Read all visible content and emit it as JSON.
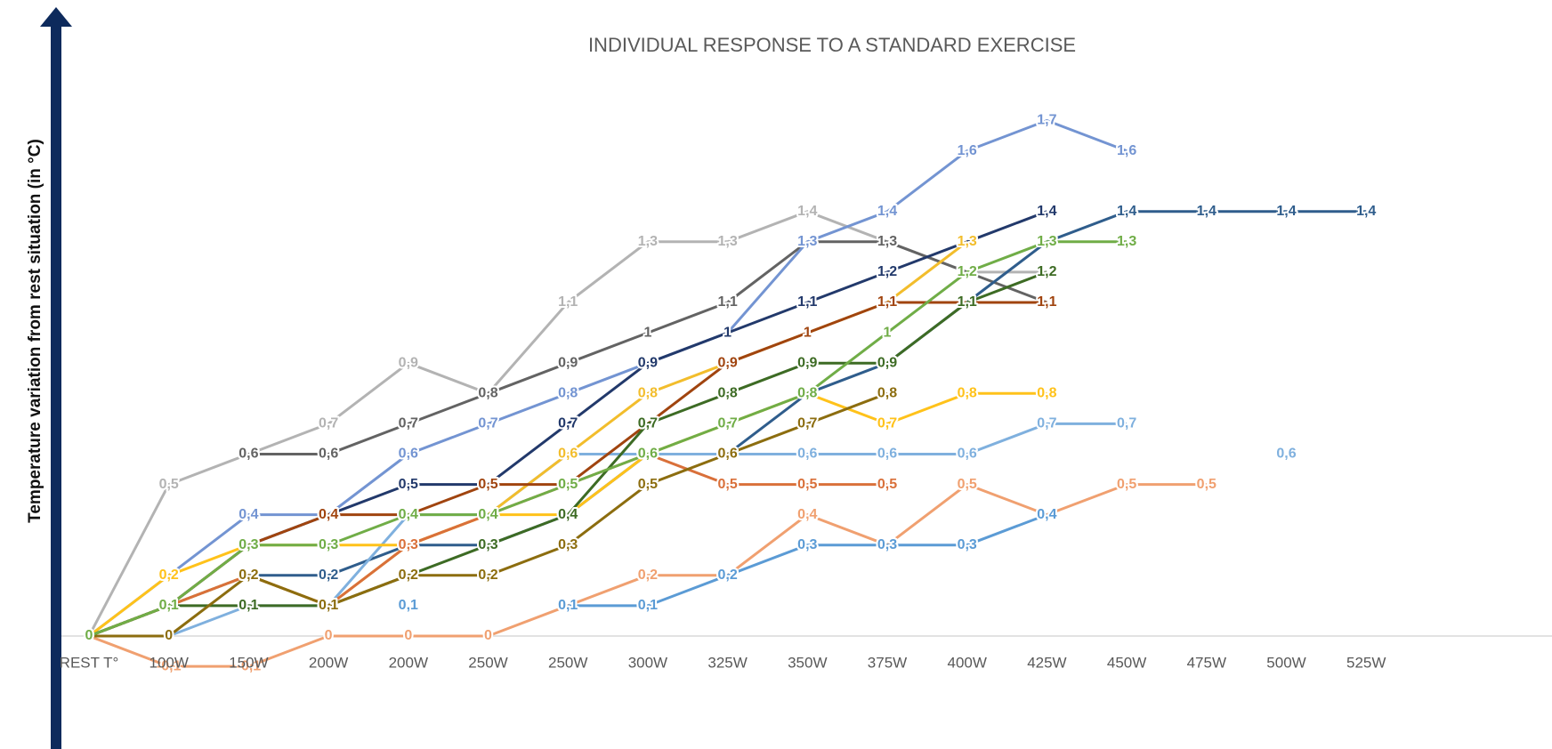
{
  "chart_data": {
    "type": "line",
    "title": "INDIVIDUAL RESPONSE TO A STANDARD EXERCISE",
    "ylabel": "Temperature variation from rest situation (in °C)",
    "categories": [
      "REST T°",
      "100W",
      "150W",
      "200W",
      "200W",
      "250W",
      "250W",
      "300W",
      "325W",
      "350W",
      "375W",
      "400W",
      "425W",
      "450W",
      "475W",
      "500W",
      "525W"
    ],
    "ylim": [
      -0.22,
      2.03
    ],
    "series": [
      {
        "color": "#b3b3b3",
        "values": [
          0,
          0.5,
          0.6,
          0.7,
          0.9,
          0.8,
          1.1,
          1.3,
          1.3,
          1.4,
          1.3,
          1.2,
          1.2,
          null,
          null,
          null,
          null
        ],
        "value_labels": [
          "0",
          "0,5",
          "0,6",
          "0,7",
          "0,9",
          "0,8",
          "1,1",
          "1,3",
          "1,3",
          "1,4",
          "1,3",
          "1,2",
          "1,2",
          null,
          null,
          null,
          null
        ]
      },
      {
        "color": "#636363",
        "values": [
          null,
          null,
          0.6,
          0.6,
          0.7,
          0.8,
          0.9,
          1,
          1.1,
          1.3,
          1.3,
          1.2,
          1.1,
          null,
          null,
          null,
          null
        ],
        "value_labels": [
          null,
          null,
          "0,6",
          "0,6",
          "0,7",
          "0,8",
          "0,9",
          "1",
          "1,1",
          "1,3",
          "1,3",
          "1,2",
          "1,1",
          null,
          null,
          null,
          null
        ]
      },
      {
        "color": "#7394d2",
        "values": [
          0,
          0.2,
          0.4,
          0.4,
          0.6,
          0.7,
          0.8,
          0.9,
          1,
          1.3,
          1.4,
          1.6,
          1.7,
          1.6,
          null,
          null,
          null
        ],
        "value_labels": [
          "0",
          "0,2",
          "0,4",
          "0,4",
          "0,6",
          "0,7",
          "0,8",
          "0,9",
          "1",
          "1,3",
          "1,4",
          "1,6",
          "1,7",
          "1,6",
          null,
          null,
          null
        ]
      },
      {
        "color": "#22396b",
        "values": [
          0,
          0.1,
          0.3,
          0.4,
          0.5,
          0.5,
          0.7,
          0.9,
          1,
          1.1,
          1.2,
          1.3,
          1.4,
          null,
          null,
          null,
          null
        ],
        "value_labels": [
          "0",
          "0,1",
          "0,3",
          "0,4",
          "0,5",
          "0,5",
          "0,7",
          "0,9",
          "1",
          "1,1",
          "1,2",
          "1,3",
          "1,4",
          null,
          null,
          null,
          null
        ]
      },
      {
        "color": "#2f5d8c",
        "values": [
          0,
          0.1,
          0.2,
          0.2,
          0.3,
          0.3,
          0.4,
          0.6,
          0.6,
          0.8,
          0.9,
          1.1,
          1.3,
          1.4,
          1.4,
          1.4,
          1.4
        ],
        "value_labels": [
          "0",
          "0,1",
          "0,2",
          "0,2",
          "0,3",
          "0,3",
          "0,4",
          "0,6",
          "0,6",
          "0,8",
          "0,9",
          "1,1",
          "1,3",
          "1,4",
          "1,4",
          "1,4",
          "1,4"
        ]
      },
      {
        "color": "#7fb0de",
        "values": [
          0,
          0,
          0.1,
          0.1,
          0.4,
          0.4,
          0.6,
          0.6,
          0.6,
          0.6,
          0.6,
          0.6,
          0.7,
          0.7,
          null,
          0.6,
          null
        ],
        "value_labels": [
          "0",
          "0",
          "0,1",
          "0,1",
          "0,4",
          "0,4",
          "0,6",
          "0,6",
          "0,6",
          "0,6",
          "0,6",
          "0,6",
          "0,7",
          "0,7",
          null,
          "0,6",
          null
        ]
      },
      {
        "color": "#f0a070",
        "values": [
          0,
          -0.1,
          -0.1,
          0,
          0,
          0,
          0.1,
          0.2,
          0.2,
          0.4,
          0.3,
          0.5,
          0.4,
          0.5,
          0.5,
          null,
          null
        ],
        "value_labels": [
          "0",
          "-0,1",
          "-0,1",
          "0",
          "0",
          "0",
          "0,1",
          "0,2",
          "0,2",
          "0,4",
          "0,3",
          "0,5",
          "0,4",
          "0,5",
          "0,5",
          null,
          null
        ]
      },
      {
        "color": "#5b9bd5",
        "values": [
          null,
          null,
          null,
          null,
          0.1,
          null,
          0.1,
          0.1,
          0.2,
          0.3,
          0.3,
          0.3,
          0.4,
          null,
          null,
          null,
          null
        ],
        "value_labels": [
          null,
          null,
          null,
          null,
          "0,1",
          null,
          "0,1",
          "0,1",
          "0,2",
          "0,3",
          "0,3",
          "0,3",
          "0,4",
          null,
          null,
          null,
          null
        ]
      },
      {
        "color": "#ffc21a",
        "values": [
          0,
          0.2,
          0.3,
          0.3,
          0.3,
          0.4,
          0.4,
          0.6,
          0.7,
          0.8,
          0.7,
          0.8,
          0.8,
          null,
          null,
          null,
          null
        ],
        "value_labels": [
          "0",
          "0,2",
          "0,3",
          "0,3",
          "0,3",
          "0,4",
          "0,4",
          "0,6",
          "0,7",
          "0,8",
          "0,7",
          "0,8",
          "0,8",
          null,
          null,
          null,
          null
        ]
      },
      {
        "color": "#f2bd2c",
        "values": [
          0,
          0.1,
          0.2,
          0.1,
          0.3,
          0.4,
          0.6,
          0.8,
          0.9,
          1,
          1.1,
          1.3,
          null,
          null,
          null,
          null,
          null
        ],
        "value_labels": [
          "0",
          "0,1",
          "0,2",
          "0,1",
          "0,3",
          "0,4",
          "0,6",
          "0,8",
          "0,9",
          "1",
          "1,1",
          "1,3",
          null,
          null,
          null,
          null,
          null
        ]
      },
      {
        "color": "#a0440f",
        "values": [
          0,
          0.1,
          0.3,
          0.4,
          0.4,
          0.5,
          0.5,
          0.7,
          0.9,
          1,
          1.1,
          1.1,
          1.1,
          null,
          null,
          null,
          null
        ],
        "value_labels": [
          "0",
          "0,1",
          "0,3",
          "0,4",
          "0,4",
          "0,5",
          "0,5",
          "0,7",
          "0,9",
          "1",
          "1,1",
          "1,1",
          "1,1",
          null,
          null,
          null,
          null
        ]
      },
      {
        "color": "#d9703a",
        "values": [
          0,
          0.1,
          0.2,
          0.1,
          0.3,
          0.4,
          0.5,
          0.6,
          0.5,
          0.5,
          0.5,
          null,
          null,
          null,
          null,
          null,
          null
        ],
        "value_labels": [
          "0",
          "0,1",
          "0,2",
          "0,1",
          "0,3",
          "0,4",
          "0,5",
          "0,6",
          "0,5",
          "0,5",
          "0,5",
          null,
          null,
          null,
          null,
          null,
          null
        ]
      },
      {
        "color": "#3d6b24",
        "values": [
          0,
          0.1,
          0.1,
          0.1,
          0.2,
          0.3,
          0.4,
          0.7,
          0.8,
          0.9,
          0.9,
          1.1,
          1.2,
          null,
          null,
          null,
          null
        ],
        "value_labels": [
          "0",
          "0,1",
          "0,1",
          "0,1",
          "0,2",
          "0,3",
          "0,4",
          "0,7",
          "0,8",
          "0,9",
          "0,9",
          "1,1",
          "1,2",
          null,
          null,
          null,
          null
        ]
      },
      {
        "color": "#8c6d0f",
        "values": [
          0,
          0,
          0.2,
          0.1,
          0.2,
          0.2,
          0.3,
          0.5,
          0.6,
          0.7,
          0.8,
          null,
          null,
          null,
          null,
          null,
          null
        ],
        "value_labels": [
          "0",
          "0",
          "0,2",
          "0,1",
          "0,2",
          "0,2",
          "0,3",
          "0,5",
          "0,6",
          "0,7",
          "0,8",
          null,
          null,
          null,
          null,
          null,
          null
        ]
      },
      {
        "color": "#70ad47",
        "values": [
          0,
          0.1,
          0.3,
          0.3,
          0.4,
          0.4,
          0.5,
          0.6,
          0.7,
          0.8,
          1,
          1.2,
          1.3,
          1.3,
          null,
          null,
          null
        ],
        "value_labels": [
          "0",
          "0,1",
          "0,3",
          "0,3",
          "0,4",
          "0,4",
          "0,5",
          "0,6",
          "0,7",
          "0,8",
          "1",
          "1,2",
          "1,3",
          "1,3",
          null,
          null,
          null
        ]
      }
    ]
  }
}
